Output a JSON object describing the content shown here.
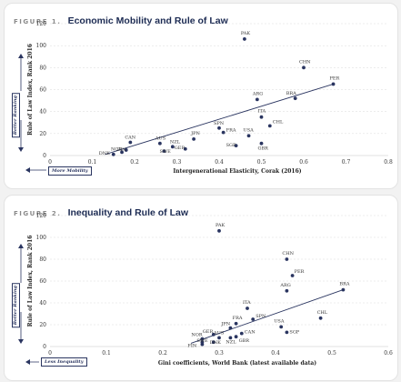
{
  "figures": [
    {
      "label": "FIGURE 1.",
      "title": "Economic Mobility and Rule of Law",
      "vertical_hint": "Better Ranking",
      "horizontal_hint": "More Mobility"
    },
    {
      "label": "FIGURE 2.",
      "title": "Inequality and Rule of Law",
      "vertical_hint": "Better Ranking",
      "horizontal_hint": "Less Inequality"
    }
  ],
  "colors": {
    "point": "#2a3560",
    "trend": "#2a3560",
    "title": "#1b2a52",
    "grid": "#d9d9d9"
  },
  "chart_data": [
    {
      "type": "scatter",
      "xlabel": "Intergenerational Elasticity, Corak (2016)",
      "ylabel": "Rule of Law Index, Rank 2016",
      "xlim": [
        0,
        0.8
      ],
      "ylim": [
        0,
        120
      ],
      "xticks": [
        "0",
        "0.1",
        "0.2",
        "0.3",
        "0.4",
        "0.5",
        "0.6",
        "0.7",
        "0.8"
      ],
      "yticks": [
        "0",
        "20",
        "40",
        "60",
        "80",
        "100",
        "120"
      ],
      "xtick_values": [
        0,
        0.1,
        0.2,
        0.3,
        0.4,
        0.5,
        0.6,
        0.7,
        0.8
      ],
      "ytick_values": [
        0,
        20,
        40,
        60,
        80,
        100,
        120
      ],
      "grid": "horizontal",
      "trendline": [
        [
          0.13,
          1
        ],
        [
          0.67,
          65
        ]
      ],
      "points": [
        {
          "label": "PAK",
          "x": 0.46,
          "y": 106
        },
        {
          "label": "CHN",
          "x": 0.6,
          "y": 80
        },
        {
          "label": "PER",
          "x": 0.67,
          "y": 65
        },
        {
          "label": "BRA",
          "x": 0.58,
          "y": 52
        },
        {
          "label": "ARG",
          "x": 0.49,
          "y": 51
        },
        {
          "label": "ITA",
          "x": 0.5,
          "y": 35
        },
        {
          "label": "CHL",
          "x": 0.52,
          "y": 27
        },
        {
          "label": "USA",
          "x": 0.47,
          "y": 18
        },
        {
          "label": "GBR",
          "x": 0.5,
          "y": 11
        },
        {
          "label": "SGP",
          "x": 0.44,
          "y": 9
        },
        {
          "label": "SPN",
          "x": 0.4,
          "y": 25
        },
        {
          "label": "FRA",
          "x": 0.41,
          "y": 21
        },
        {
          "label": "JPN",
          "x": 0.34,
          "y": 15
        },
        {
          "label": "GER",
          "x": 0.32,
          "y": 6
        },
        {
          "label": "AUS",
          "x": 0.26,
          "y": 11
        },
        {
          "label": "NZL",
          "x": 0.29,
          "y": 8
        },
        {
          "label": "SWE",
          "x": 0.27,
          "y": 4
        },
        {
          "label": "CAN",
          "x": 0.19,
          "y": 12
        },
        {
          "label": "FIN",
          "x": 0.18,
          "y": 5
        },
        {
          "label": "NOR",
          "x": 0.17,
          "y": 3
        },
        {
          "label": "DNK",
          "x": 0.15,
          "y": 1
        }
      ]
    },
    {
      "type": "scatter",
      "xlabel": "Gini coefficients, World Bank (latest available data)",
      "ylabel": "Rule of Law Index, Rank 2016",
      "xlim": [
        0,
        0.6
      ],
      "ylim": [
        0,
        120
      ],
      "xticks": [
        "0",
        "0.1",
        "0.2",
        "0.3",
        "0.4",
        "0.5",
        "0.6"
      ],
      "yticks": [
        "0",
        "20",
        "40",
        "60",
        "80",
        "100",
        "120"
      ],
      "xtick_values": [
        0,
        0.1,
        0.2,
        0.3,
        0.4,
        0.5,
        0.6
      ],
      "ytick_values": [
        0,
        20,
        40,
        60,
        80,
        100,
        120
      ],
      "grid": "horizontal",
      "trendline": [
        [
          0.25,
          3
        ],
        [
          0.52,
          52
        ]
      ],
      "points": [
        {
          "label": "PAK",
          "x": 0.3,
          "y": 106
        },
        {
          "label": "CHN",
          "x": 0.42,
          "y": 80
        },
        {
          "label": "PER",
          "x": 0.43,
          "y": 65
        },
        {
          "label": "BRA",
          "x": 0.52,
          "y": 52
        },
        {
          "label": "ARG",
          "x": 0.42,
          "y": 51
        },
        {
          "label": "ITA",
          "x": 0.35,
          "y": 35
        },
        {
          "label": "SPN",
          "x": 0.36,
          "y": 25
        },
        {
          "label": "CHL",
          "x": 0.48,
          "y": 26
        },
        {
          "label": "USA",
          "x": 0.41,
          "y": 18
        },
        {
          "label": "SGP",
          "x": 0.42,
          "y": 13
        },
        {
          "label": "JPN",
          "x": 0.32,
          "y": 17
        },
        {
          "label": "FRA",
          "x": 0.33,
          "y": 21
        },
        {
          "label": "CAN",
          "x": 0.34,
          "y": 12
        },
        {
          "label": "GBR",
          "x": 0.33,
          "y": 9
        },
        {
          "label": "GER",
          "x": 0.29,
          "y": 11
        },
        {
          "label": "NZL",
          "x": 0.32,
          "y": 8
        },
        {
          "label": "AUS",
          "x": 0.3,
          "y": 8
        },
        {
          "label": "DNK",
          "x": 0.29,
          "y": 4
        },
        {
          "label": "NOR",
          "x": 0.27,
          "y": 7
        },
        {
          "label": "SWE",
          "x": 0.27,
          "y": 4
        },
        {
          "label": "FIN",
          "x": 0.27,
          "y": 2
        }
      ]
    }
  ]
}
